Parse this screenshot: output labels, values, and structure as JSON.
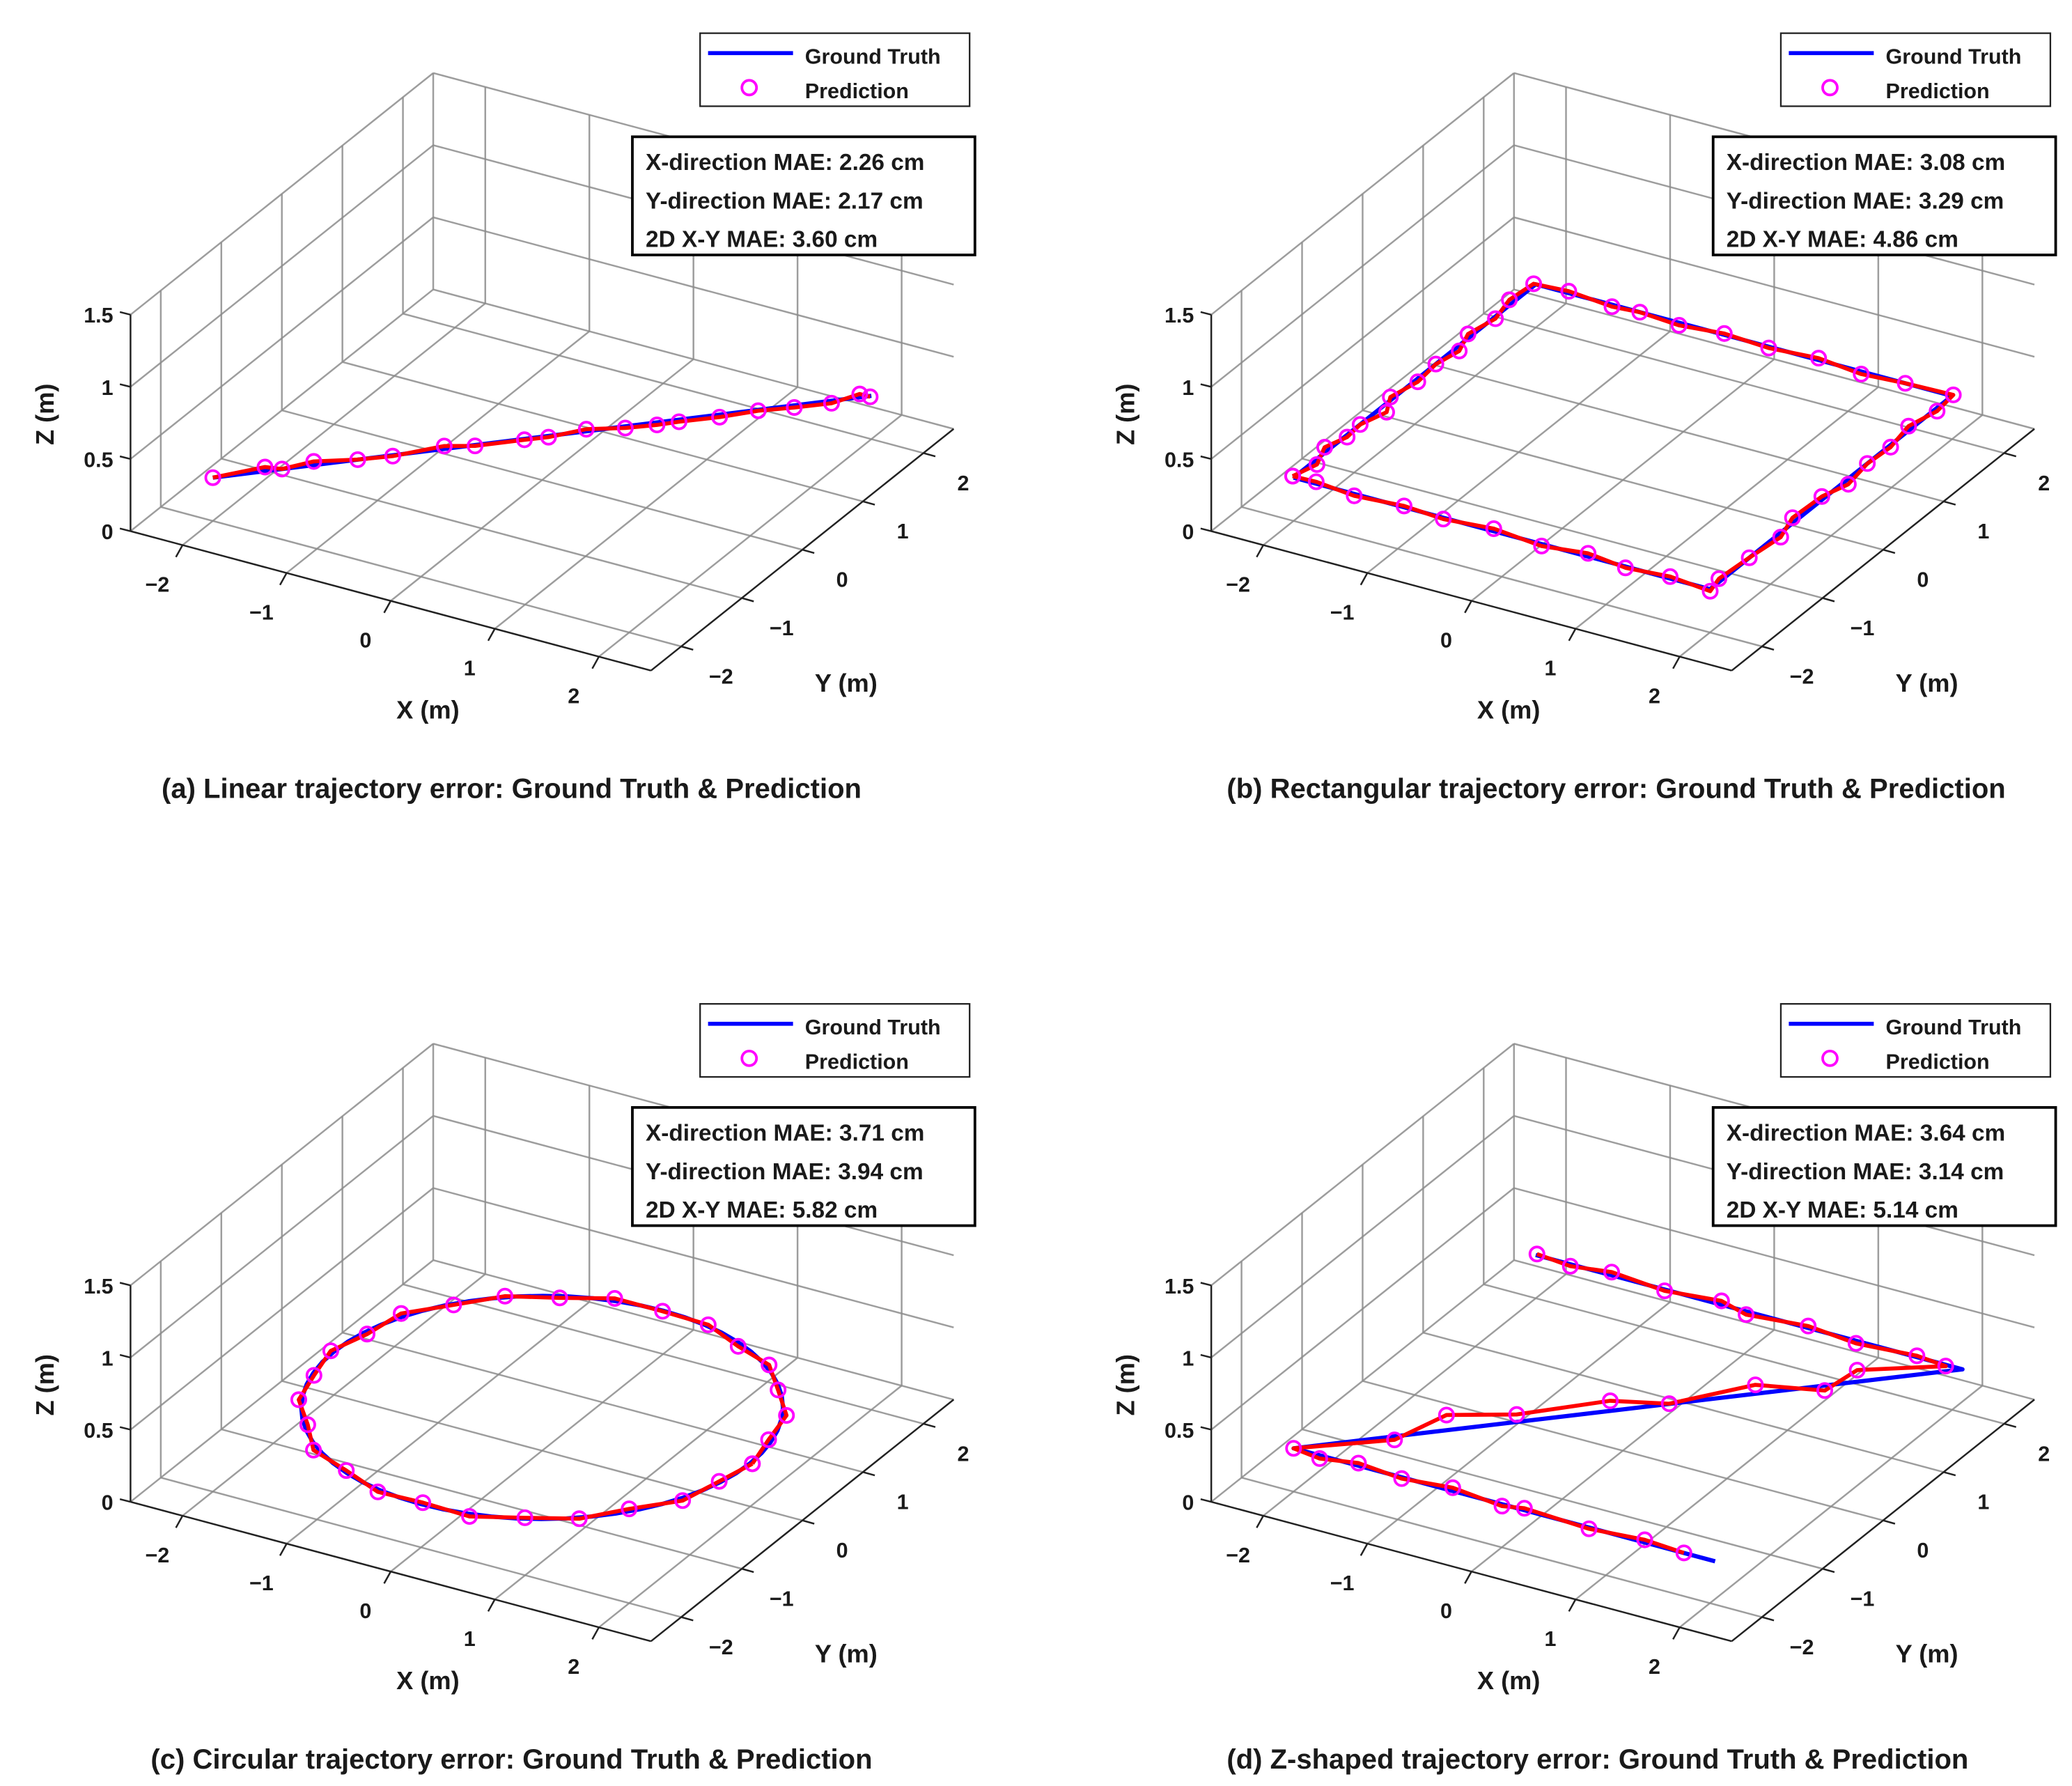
{
  "chart_data": [
    {
      "type": "line3d",
      "caption": "(a) Linear trajectory error: Ground Truth & Prediction",
      "xlabel": "X (m)",
      "ylabel": "Y (m)",
      "zlabel": "Z (m)",
      "xlim": [
        -2.5,
        2.5
      ],
      "ylim": [
        -2.5,
        2.5
      ],
      "zlim": [
        0,
        1.5
      ],
      "xticks": [
        -2,
        -1,
        0,
        1,
        2
      ],
      "xtick_labels": [
        "−2",
        "−1",
        "0",
        "1",
        "2"
      ],
      "yticks": [
        -2,
        -1,
        0,
        1,
        2
      ],
      "ytick_labels": [
        "−2",
        "−1",
        "0",
        "1",
        "2"
      ],
      "zticks": [
        0,
        0.5,
        1,
        1.5
      ],
      "ztick_labels": [
        "0",
        "0.5",
        "1",
        "1.5"
      ],
      "grid": true,
      "legend": {
        "entries": [
          "Ground Truth",
          "Prediction"
        ],
        "placement": "top-right"
      },
      "mae": [
        "X-direction MAE: 2.26 cm",
        "Y-direction MAE: 2.17 cm",
        "2D X-Y MAE: 3.60 cm"
      ],
      "trajectory_height": 0.3,
      "ground_truth": [
        [
          -2,
          -2
        ],
        [
          2,
          2
        ]
      ],
      "prediction": [
        [
          -2.0,
          -2.0
        ],
        [
          -1.72,
          -1.62
        ],
        [
          -1.58,
          -1.58
        ],
        [
          -1.42,
          -1.33
        ],
        [
          -1.12,
          -1.12
        ],
        [
          -0.9,
          -0.92
        ],
        [
          -0.62,
          -0.55
        ],
        [
          -0.4,
          -0.42
        ],
        [
          -0.1,
          -0.12
        ],
        [
          0.05,
          0.02
        ],
        [
          0.25,
          0.3
        ],
        [
          0.52,
          0.48
        ],
        [
          0.72,
          0.66
        ],
        [
          0.85,
          0.8
        ],
        [
          1.1,
          1.04
        ],
        [
          1.32,
          1.3
        ],
        [
          1.55,
          1.5
        ],
        [
          1.78,
          1.72
        ],
        [
          1.9,
          1.98
        ],
        [
          2.0,
          1.98
        ]
      ]
    },
    {
      "type": "line3d",
      "caption": "(b) Rectangular trajectory error: Ground Truth & Prediction",
      "xlabel": "X (m)",
      "ylabel": "Y (m)",
      "zlabel": "Z (m)",
      "xlim": [
        -2.5,
        2.5
      ],
      "ylim": [
        -2.5,
        2.5
      ],
      "zlim": [
        0,
        1.5
      ],
      "xticks": [
        -2,
        -1,
        0,
        1,
        2
      ],
      "xtick_labels": [
        "−2",
        "−1",
        "0",
        "1",
        "2"
      ],
      "yticks": [
        -2,
        -1,
        0,
        1,
        2
      ],
      "ytick_labels": [
        "−2",
        "−1",
        "0",
        "1",
        "2"
      ],
      "zticks": [
        0,
        0.5,
        1,
        1.5
      ],
      "ztick_labels": [
        "0",
        "0.5",
        "1",
        "1.5"
      ],
      "grid": true,
      "legend": {
        "entries": [
          "Ground Truth",
          "Prediction"
        ],
        "placement": "top-right"
      },
      "mae": [
        "X-direction MAE: 3.08 cm",
        "Y-direction MAE: 3.29 cm",
        "2D X-Y MAE: 4.86 cm"
      ],
      "trajectory_height": 0.3,
      "ground_truth": [
        [
          -2,
          -2
        ],
        [
          -2,
          2
        ],
        [
          2,
          2
        ],
        [
          2,
          -2
        ],
        [
          -2,
          -2
        ]
      ],
      "prediction": [
        [
          -2.02,
          -1.98
        ],
        [
          -1.95,
          -1.7
        ],
        [
          -2.05,
          -1.4
        ],
        [
          -1.98,
          -1.15
        ],
        [
          -2.0,
          -0.9
        ],
        [
          -1.92,
          -0.6
        ],
        [
          -2.03,
          -0.35
        ],
        [
          -1.97,
          0.0
        ],
        [
          -2.0,
          0.35
        ],
        [
          -1.95,
          0.65
        ],
        [
          -2.04,
          0.95
        ],
        [
          -1.98,
          1.3
        ],
        [
          -2.05,
          1.65
        ],
        [
          -2.02,
          2.0
        ],
        [
          -1.7,
          2.03
        ],
        [
          -1.25,
          1.97
        ],
        [
          -1.0,
          2.0
        ],
        [
          -0.6,
          1.96
        ],
        [
          -0.2,
          2.02
        ],
        [
          0.25,
          1.98
        ],
        [
          0.7,
          2.03
        ],
        [
          1.15,
          1.96
        ],
        [
          1.55,
          2.0
        ],
        [
          2.0,
          2.02
        ],
        [
          2.03,
          1.7
        ],
        [
          1.96,
          1.35
        ],
        [
          2.02,
          0.95
        ],
        [
          2.0,
          0.6
        ],
        [
          2.05,
          0.2
        ],
        [
          1.97,
          -0.1
        ],
        [
          1.95,
          -0.55
        ],
        [
          2.04,
          -0.9
        ],
        [
          2.0,
          -1.35
        ],
        [
          1.97,
          -1.8
        ],
        [
          2.02,
          -2.03
        ],
        [
          1.6,
          -1.97
        ],
        [
          1.2,
          -2.02
        ],
        [
          0.8,
          -1.95
        ],
        [
          0.4,
          -2.03
        ],
        [
          -0.1,
          -1.96
        ],
        [
          -0.55,
          -2.02
        ],
        [
          -0.95,
          -1.98
        ],
        [
          -1.4,
          -2.03
        ],
        [
          -1.8,
          -1.97
        ],
        [
          -2.02,
          -1.98
        ]
      ]
    },
    {
      "type": "line3d",
      "caption": "(c) Circular trajectory error: Ground Truth & Prediction",
      "xlabel": "X (m)",
      "ylabel": "Y (m)",
      "zlabel": "Z (m)",
      "xlim": [
        -2.5,
        2.5
      ],
      "ylim": [
        -2.5,
        2.5
      ],
      "zlim": [
        0,
        1.5
      ],
      "xticks": [
        -2,
        -1,
        0,
        1,
        2
      ],
      "xtick_labels": [
        "−2",
        "−1",
        "0",
        "1",
        "2"
      ],
      "yticks": [
        -2,
        -1,
        0,
        1,
        2
      ],
      "ytick_labels": [
        "−2",
        "−1",
        "0",
        "1",
        "2"
      ],
      "zticks": [
        0,
        0.5,
        1,
        1.5
      ],
      "ztick_labels": [
        "0",
        "0.5",
        "1",
        "1.5"
      ],
      "grid": true,
      "legend": {
        "entries": [
          "Ground Truth",
          "Prediction"
        ],
        "placement": "top-right"
      },
      "mae": [
        "X-direction MAE: 3.71 cm",
        "Y-direction MAE: 3.94 cm",
        "2D X-Y MAE: 5.82 cm"
      ],
      "trajectory_height": 0.3,
      "ground_truth_circle": {
        "center": [
          0,
          0
        ],
        "radius": 2
      },
      "prediction": [
        [
          2.02,
          0.0
        ],
        [
          1.92,
          0.44
        ],
        [
          1.83,
          0.89
        ],
        [
          1.54,
          1.25
        ],
        [
          1.25,
          1.6
        ],
        [
          0.86,
          1.76
        ],
        [
          0.45,
          1.97
        ],
        [
          0.0,
          1.99
        ],
        [
          -0.46,
          1.99
        ],
        [
          -0.86,
          1.77
        ],
        [
          -1.27,
          1.57
        ],
        [
          -1.56,
          1.22
        ],
        [
          -1.86,
          0.87
        ],
        [
          -1.92,
          0.41
        ],
        [
          -2.03,
          0.0
        ],
        [
          -1.93,
          -0.45
        ],
        [
          -1.82,
          -0.89
        ],
        [
          -1.53,
          -1.24
        ],
        [
          -1.26,
          -1.61
        ],
        [
          -0.84,
          -1.79
        ],
        [
          -0.42,
          -1.99
        ],
        [
          0.0,
          -1.97
        ],
        [
          0.46,
          -1.99
        ],
        [
          0.87,
          -1.78
        ],
        [
          1.27,
          -1.57
        ],
        [
          1.54,
          -1.21
        ],
        [
          1.85,
          -0.86
        ],
        [
          1.94,
          -0.41
        ],
        [
          2.02,
          0.0
        ]
      ]
    },
    {
      "type": "line3d",
      "caption": "(d) Z-shaped trajectory error: Ground Truth & Prediction",
      "xlabel": "X (m)",
      "ylabel": "Y (m)",
      "zlabel": "Z (m)",
      "xlim": [
        -2.5,
        2.5
      ],
      "ylim": [
        -2.5,
        2.5
      ],
      "zlim": [
        0,
        1.5
      ],
      "xticks": [
        -2,
        -1,
        0,
        1,
        2
      ],
      "xtick_labels": [
        "−2",
        "−1",
        "0",
        "1",
        "2"
      ],
      "yticks": [
        -2,
        -1,
        0,
        1,
        2
      ],
      "ytick_labels": [
        "−2",
        "−1",
        "0",
        "1",
        "2"
      ],
      "zticks": [
        0,
        0.5,
        1,
        1.5
      ],
      "ztick_labels": [
        "0",
        "0.5",
        "1",
        "1.5"
      ],
      "grid": true,
      "legend": {
        "entries": [
          "Ground Truth",
          "Prediction"
        ],
        "placement": "top-right"
      },
      "mae": [
        "X-direction MAE: 3.64 cm",
        "Y-direction MAE: 3.14 cm",
        "2D X-Y MAE: 5.14 cm"
      ],
      "trajectory_height": 0.3,
      "ground_truth": [
        [
          -2,
          2
        ],
        [
          2.1,
          2
        ],
        [
          -2,
          -2
        ],
        [
          2.05,
          -2
        ]
      ],
      "prediction": [
        [
          -2.0,
          2.02
        ],
        [
          -1.65,
          1.97
        ],
        [
          -1.3,
          2.05
        ],
        [
          -0.75,
          1.98
        ],
        [
          -0.25,
          2.06
        ],
        [
          0.05,
          1.95
        ],
        [
          0.6,
          2.03
        ],
        [
          1.1,
          1.96
        ],
        [
          1.65,
          2.02
        ],
        [
          1.95,
          1.98
        ],
        [
          1.35,
          1.55
        ],
        [
          1.3,
          1.1
        ],
        [
          0.75,
          0.9
        ],
        [
          0.3,
          0.25
        ],
        [
          -0.15,
          0.05
        ],
        [
          -0.7,
          -0.55
        ],
        [
          -1.2,
          -0.85
        ],
        [
          -1.35,
          -1.45
        ],
        [
          -2.0,
          -2.0
        ],
        [
          -1.72,
          -2.05
        ],
        [
          -1.4,
          -1.96
        ],
        [
          -0.95,
          -2.02
        ],
        [
          -0.5,
          -1.95
        ],
        [
          0.02,
          -2.03
        ],
        [
          0.2,
          -1.97
        ],
        [
          0.85,
          -2.02
        ],
        [
          1.35,
          -1.96
        ],
        [
          1.75,
          -2.0
        ]
      ]
    }
  ],
  "colors": {
    "ground_truth": "#0000ff",
    "prediction_line": "#ff0000",
    "prediction_marker": "#ff00ff"
  }
}
